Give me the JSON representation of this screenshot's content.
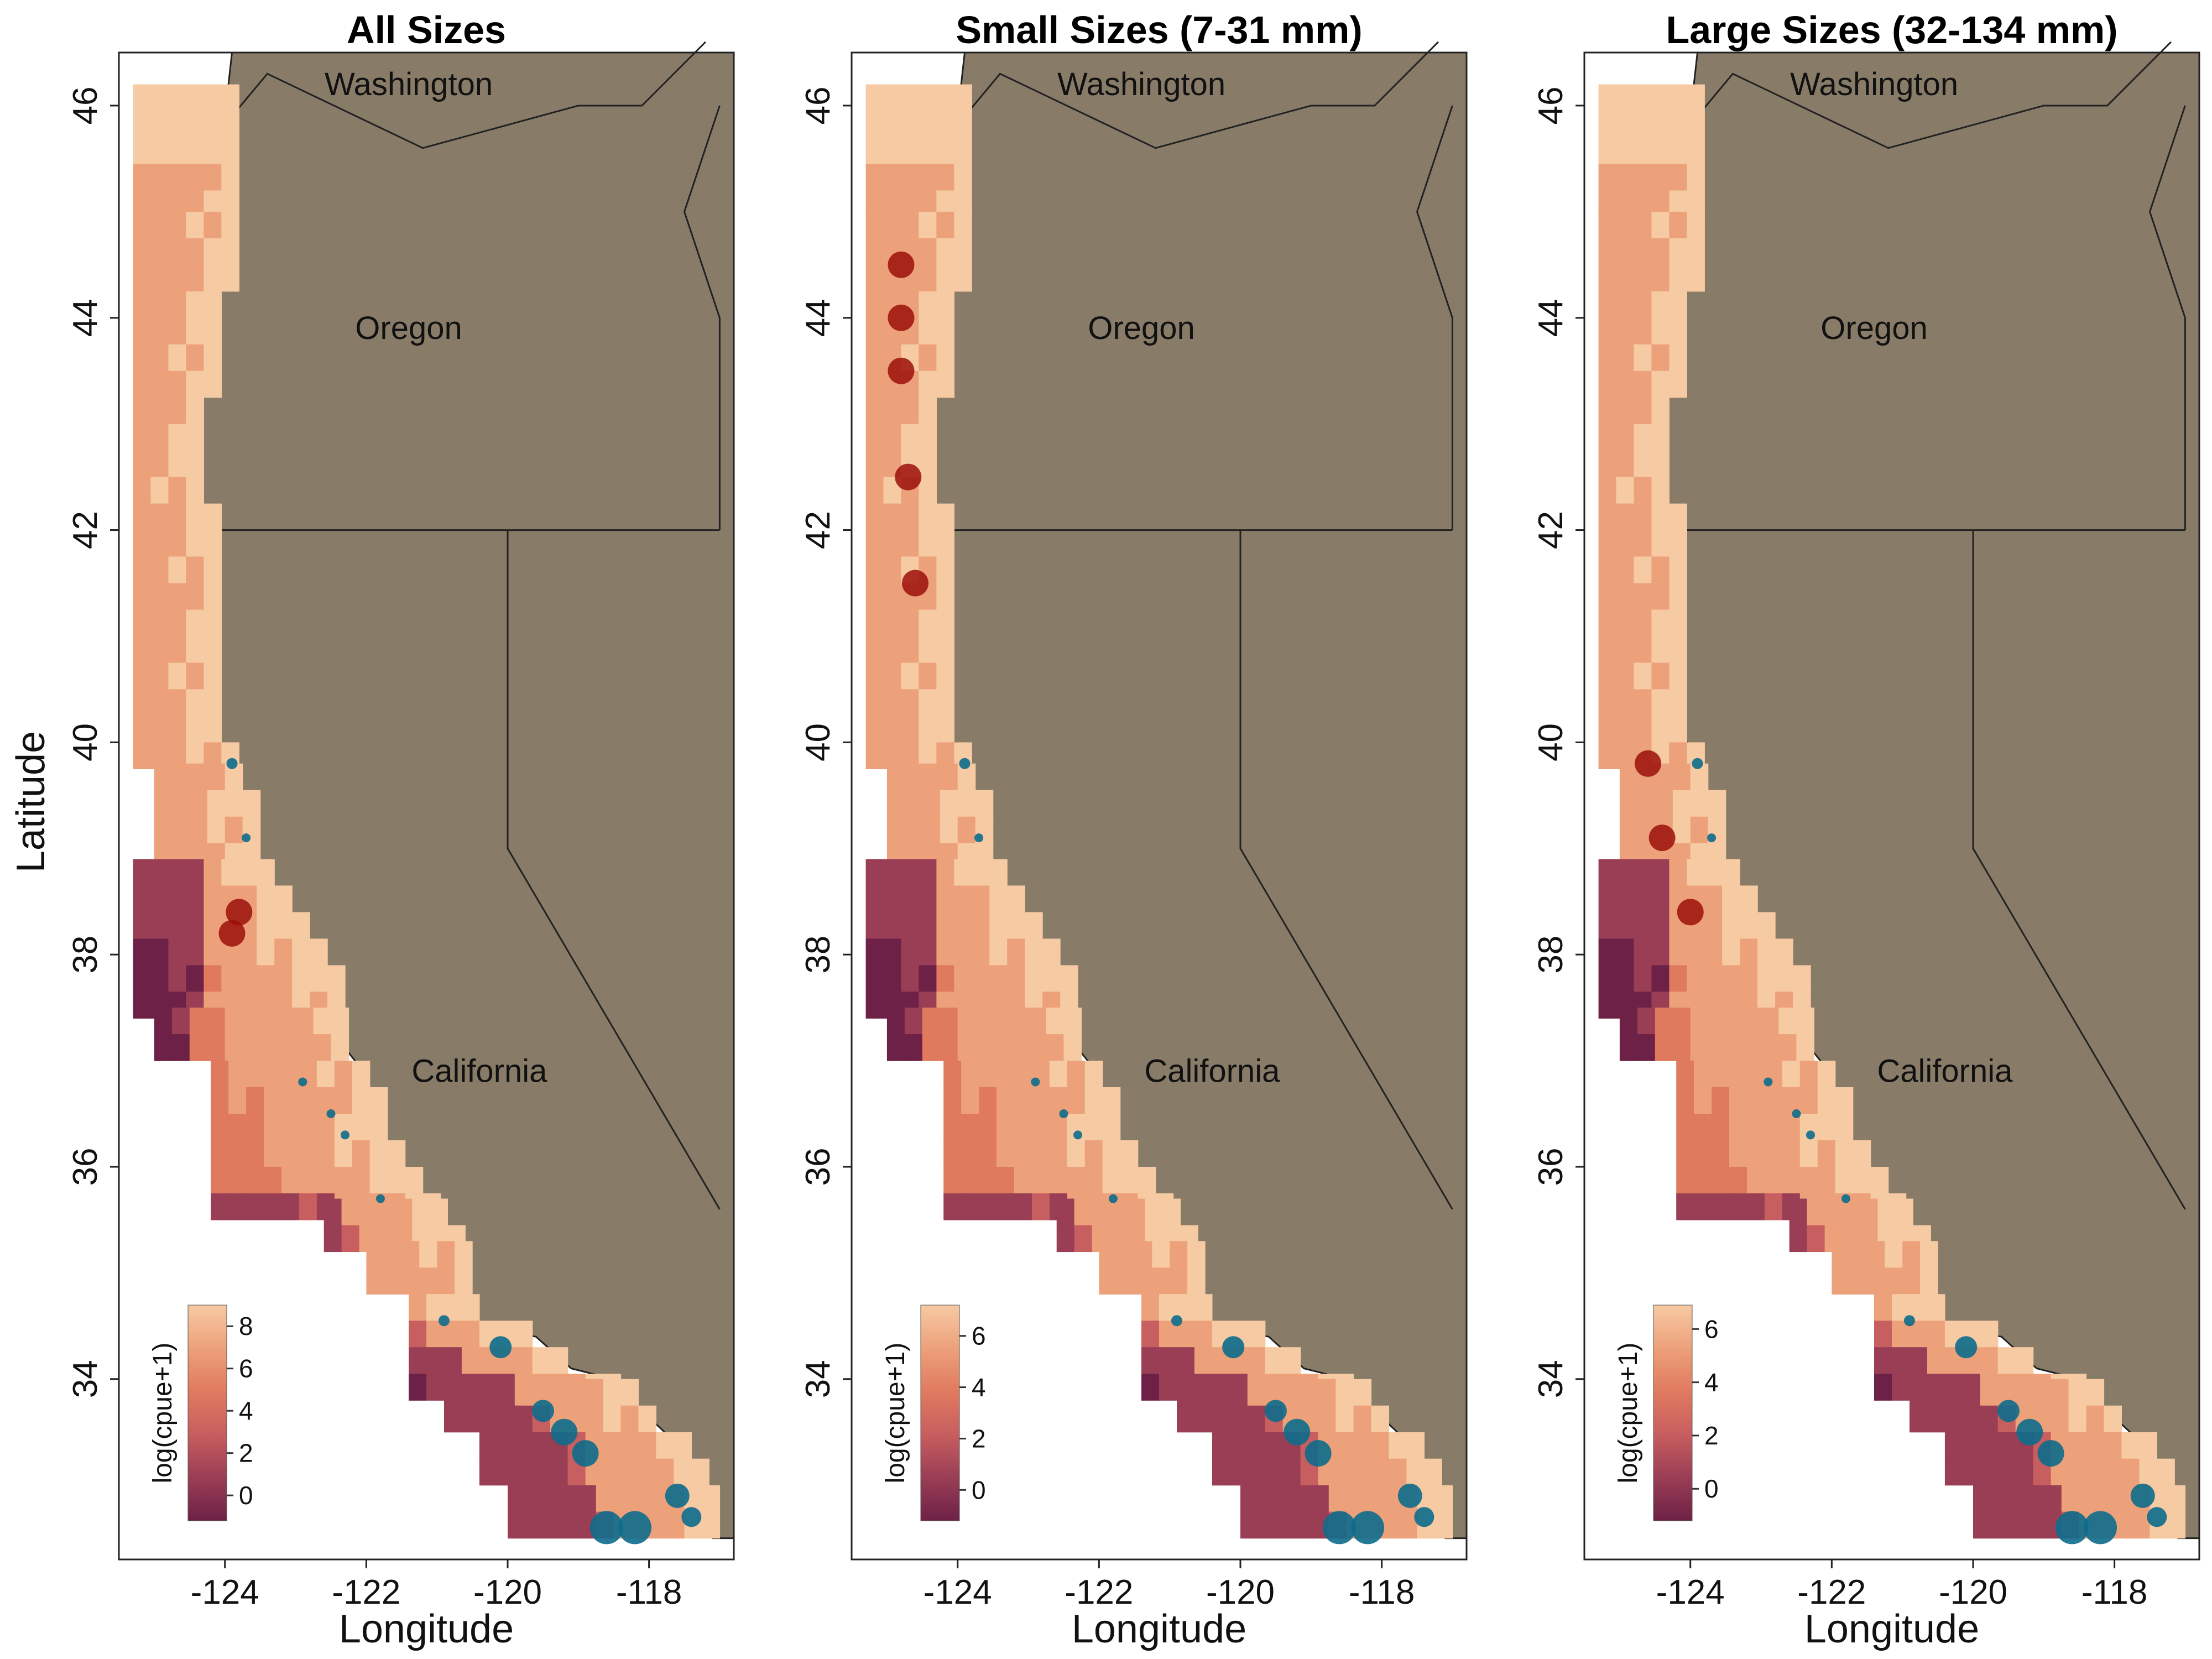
{
  "figure": {
    "ylabel": "Latitude"
  },
  "legend": {
    "title": "log(cpue+1)",
    "colors": [
      "#6e2146",
      "#9a3e55",
      "#c75e5f",
      "#e07a5f",
      "#eda17a",
      "#f6caa3"
    ]
  },
  "map_colors": {
    "land": "#887c68",
    "ocean_bg": "#ffffff",
    "low_cpue_point": "#0d6c8c",
    "high_cpue_point": "#9b0f0a",
    "mid_cpue_point": "#5c7278"
  },
  "panels": [
    {
      "title": "All Sizes",
      "xlabel": "Longitude",
      "states": [
        "Washington",
        "Oregon",
        "California"
      ],
      "x_ticks": [
        "-124",
        "-122",
        "-120",
        "-118"
      ],
      "y_ticks": [
        "46",
        "44",
        "42",
        "40",
        "38",
        "36",
        "34"
      ],
      "legend_ticks": [
        "8",
        "6",
        "4",
        "2",
        "0"
      ],
      "legend_range": [
        -1.2,
        9.0
      ],
      "raster_range": [
        -1,
        9
      ],
      "hotspots": [
        [
          -123.8,
          38.4
        ],
        [
          -123.9,
          38.2
        ]
      ]
    },
    {
      "title": "Small Sizes (7-31 mm)",
      "xlabel": "Longitude",
      "states": [
        "Washington",
        "Oregon",
        "California"
      ],
      "x_ticks": [
        "-124",
        "-122",
        "-120",
        "-118"
      ],
      "y_ticks": [
        "46",
        "44",
        "42",
        "40",
        "38",
        "36",
        "34"
      ],
      "legend_ticks": [
        "6",
        "4",
        "2",
        "0"
      ],
      "legend_range": [
        -1.2,
        7.2
      ],
      "raster_range": [
        -1,
        7
      ],
      "hotspots": [
        [
          -124.8,
          44.5
        ],
        [
          -124.8,
          44.0
        ],
        [
          -124.8,
          43.5
        ],
        [
          -124.7,
          42.5
        ],
        [
          -124.6,
          41.5
        ]
      ]
    },
    {
      "title": "Large Sizes (32-134 mm)",
      "xlabel": "Longitude",
      "states": [
        "Washington",
        "Oregon",
        "California"
      ],
      "x_ticks": [
        "-124",
        "-122",
        "-120",
        "-118"
      ],
      "y_ticks": [
        "46",
        "44",
        "42",
        "40",
        "38",
        "36",
        "34"
      ],
      "legend_ticks": [
        "6",
        "4",
        "2",
        "0"
      ],
      "legend_range": [
        -1.2,
        6.9
      ],
      "raster_range": [
        -1,
        7
      ],
      "hotspots": [
        [
          -124.6,
          39.8
        ],
        [
          -124.4,
          39.1
        ],
        [
          -124.0,
          38.4
        ]
      ]
    }
  ]
}
